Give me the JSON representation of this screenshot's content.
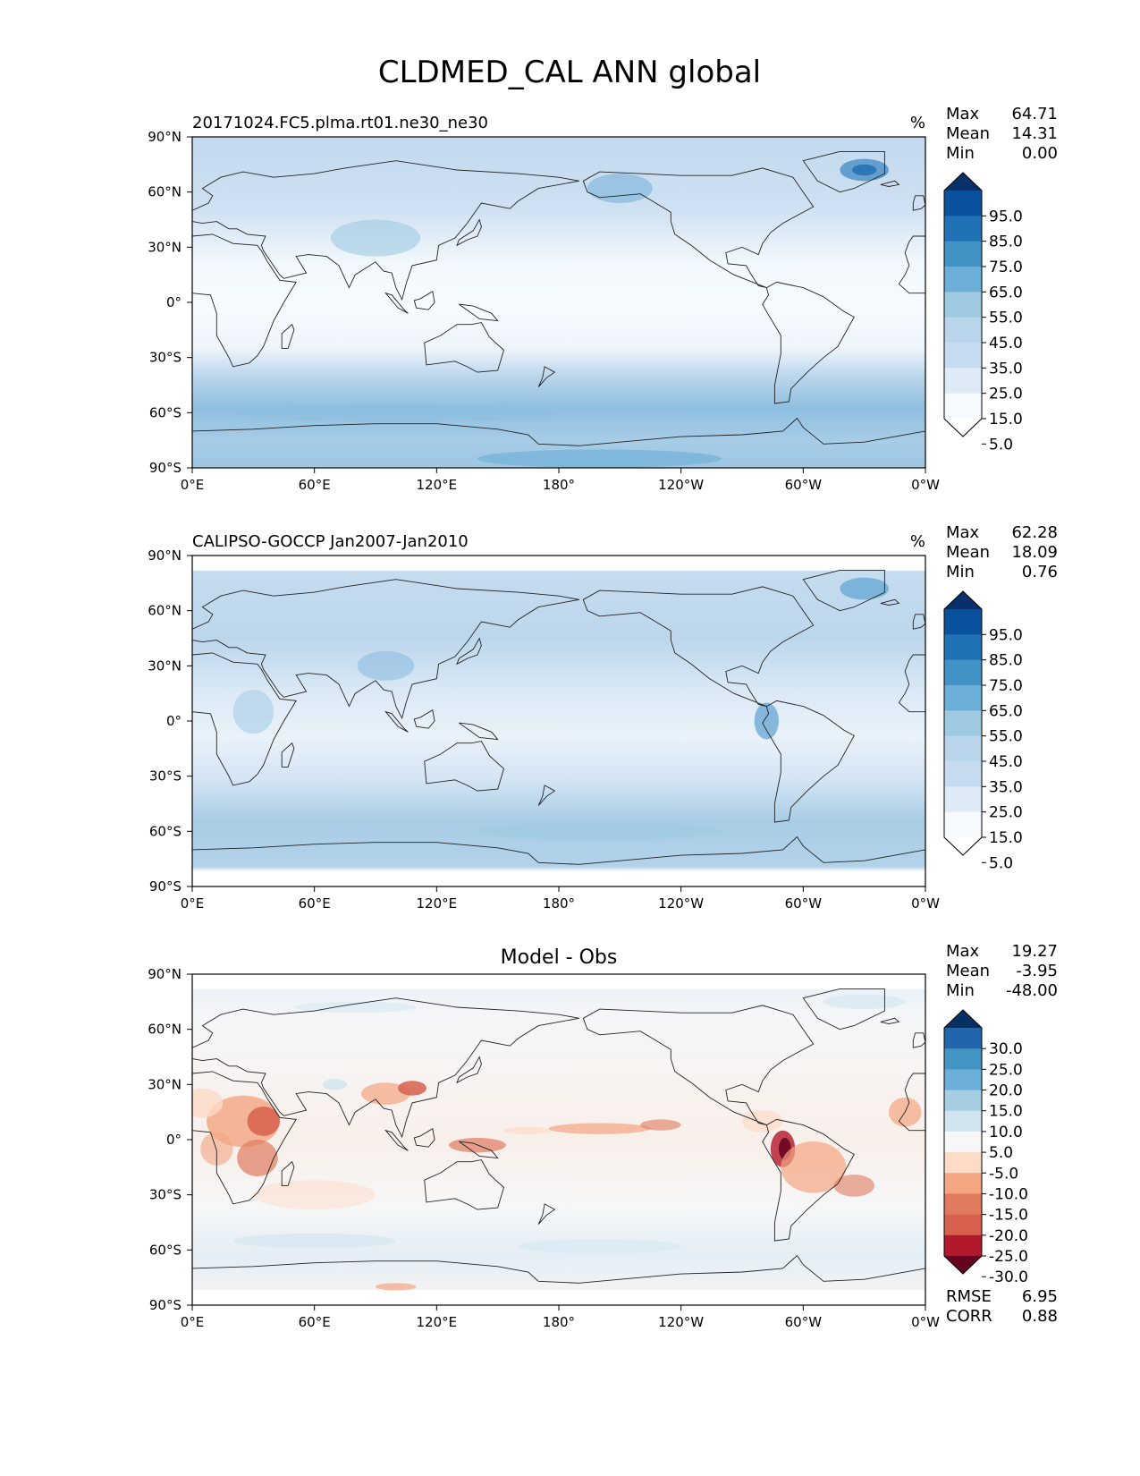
{
  "figure": {
    "title": "CLDMED_CAL ANN global",
    "x_ticks": [
      "0°E",
      "60°E",
      "120°E",
      "180°",
      "120°W",
      "60°W",
      "0°W"
    ],
    "y_ticks": [
      "90°N",
      "60°N",
      "30°N",
      "0°",
      "30°S",
      "60°S",
      "90°S"
    ]
  },
  "panels": [
    {
      "id": "test",
      "left_title": "20171024.FC5.plma.rt01.ne30_ne30",
      "center_title": "",
      "units": "%",
      "stats": [
        {
          "label": "Max",
          "value": "64.71"
        },
        {
          "label": "Mean",
          "value": "14.31"
        },
        {
          "label": "Min",
          "value": "0.00"
        }
      ],
      "colorbar": {
        "labels": [
          "95.0",
          "85.0",
          "75.0",
          "65.0",
          "55.0",
          "45.0",
          "35.0",
          "25.0",
          "15.0",
          "5.0"
        ],
        "colors": [
          "#08306b",
          "#08519c",
          "#2171b5",
          "#4292c6",
          "#6baed6",
          "#9ecae1",
          "#b9d6ec",
          "#c6dbef",
          "#deebf7",
          "#f7fbff",
          "#ffffff"
        ]
      },
      "extra_stats": []
    },
    {
      "id": "reference",
      "left_title": "CALIPSO-GOCCP Jan2007-Jan2010",
      "center_title": "",
      "units": "%",
      "stats": [
        {
          "label": "Max",
          "value": "62.28"
        },
        {
          "label": "Mean",
          "value": "18.09"
        },
        {
          "label": "Min",
          "value": "0.76"
        }
      ],
      "colorbar": {
        "labels": [
          "95.0",
          "85.0",
          "75.0",
          "65.0",
          "55.0",
          "45.0",
          "35.0",
          "25.0",
          "15.0",
          "5.0"
        ],
        "colors": [
          "#08306b",
          "#08519c",
          "#2171b5",
          "#4292c6",
          "#6baed6",
          "#9ecae1",
          "#b9d6ec",
          "#c6dbef",
          "#deebf7",
          "#f7fbff",
          "#ffffff"
        ]
      },
      "extra_stats": []
    },
    {
      "id": "difference",
      "left_title": "",
      "center_title": "Model - Obs",
      "units": "",
      "stats": [
        {
          "label": "Max",
          "value": "19.27"
        },
        {
          "label": "Mean",
          "value": "-3.95"
        },
        {
          "label": "Min",
          "value": "-48.00"
        }
      ],
      "colorbar": {
        "labels": [
          "30.0",
          "25.0",
          "20.0",
          "15.0",
          "10.0",
          "5.0",
          "-5.0",
          "-10.0",
          "-15.0",
          "-20.0",
          "-25.0",
          "-30.0"
        ],
        "colors": [
          "#053061",
          "#2166ac",
          "#4393c3",
          "#6baed6",
          "#a6cee3",
          "#d1e5f0",
          "#f7f7f7",
          "#fddbc7",
          "#f4a582",
          "#e07a5f",
          "#d6604d",
          "#b2182b",
          "#67001f"
        ]
      },
      "extra_stats": [
        {
          "label": "RMSE",
          "value": "6.95"
        },
        {
          "label": "CORR",
          "value": "0.88"
        }
      ]
    }
  ]
}
